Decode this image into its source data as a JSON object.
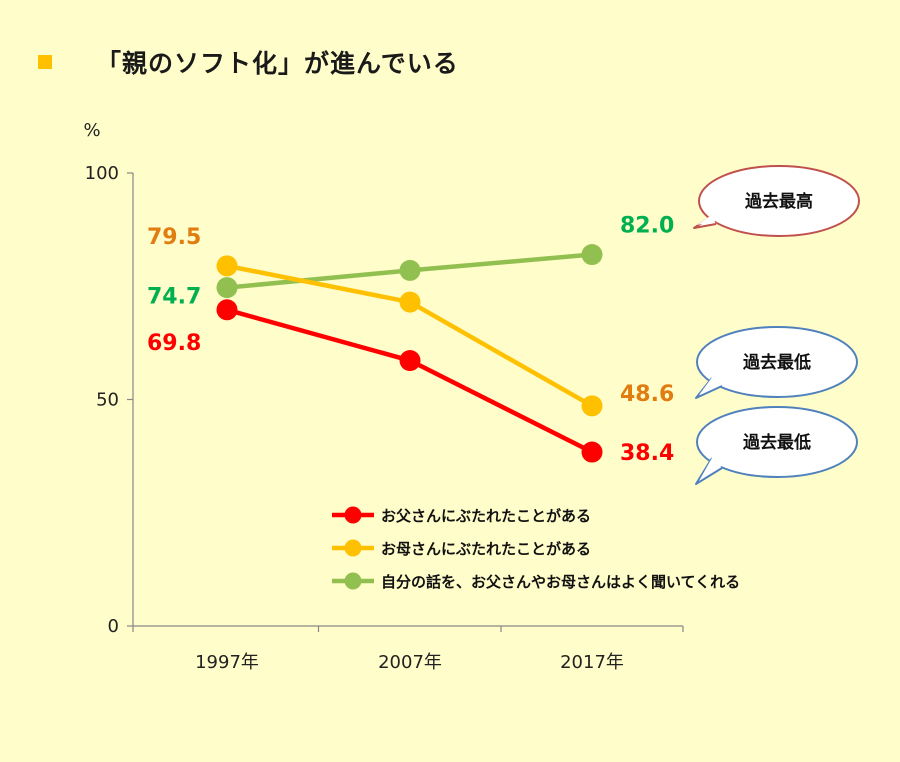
{
  "title": {
    "marker_color": "#ffc000",
    "text": "「親のソフト化」が進んでいる"
  },
  "chart_data": {
    "type": "line",
    "unit_label": "%",
    "categories": [
      "1997年",
      "2007年",
      "2017年"
    ],
    "ylim": [
      0,
      100
    ],
    "yticks": [
      "0",
      "50",
      "100"
    ],
    "series": [
      {
        "name": "お父さんにぶたれたことがある",
        "color": "#ff0000",
        "label_color": "#ff0000",
        "values": [
          69.8,
          58.6,
          38.4
        ],
        "labels": [
          "69.8",
          "",
          "38.4"
        ]
      },
      {
        "name": "お母さんにぶたれたことがある",
        "color": "#ffc000",
        "label_color": "#e07c10",
        "values": [
          79.5,
          71.5,
          48.6
        ],
        "labels": [
          "79.5",
          "",
          "48.6"
        ]
      },
      {
        "name": "自分の話を、お父さんやお母さんはよく聞いてくれる",
        "color": "#92c050",
        "label_color": "#00b050",
        "values": [
          74.7,
          78.5,
          82.0
        ],
        "labels": [
          "74.7",
          "",
          "82.0"
        ]
      }
    ],
    "annotations": [
      {
        "text": "過去最高",
        "series": 2,
        "border_color": "#c0504d"
      },
      {
        "text": "過去最低",
        "series": 1,
        "border_color": "#4f81bd"
      },
      {
        "text": "過去最低",
        "series": 0,
        "border_color": "#4f81bd"
      }
    ]
  }
}
